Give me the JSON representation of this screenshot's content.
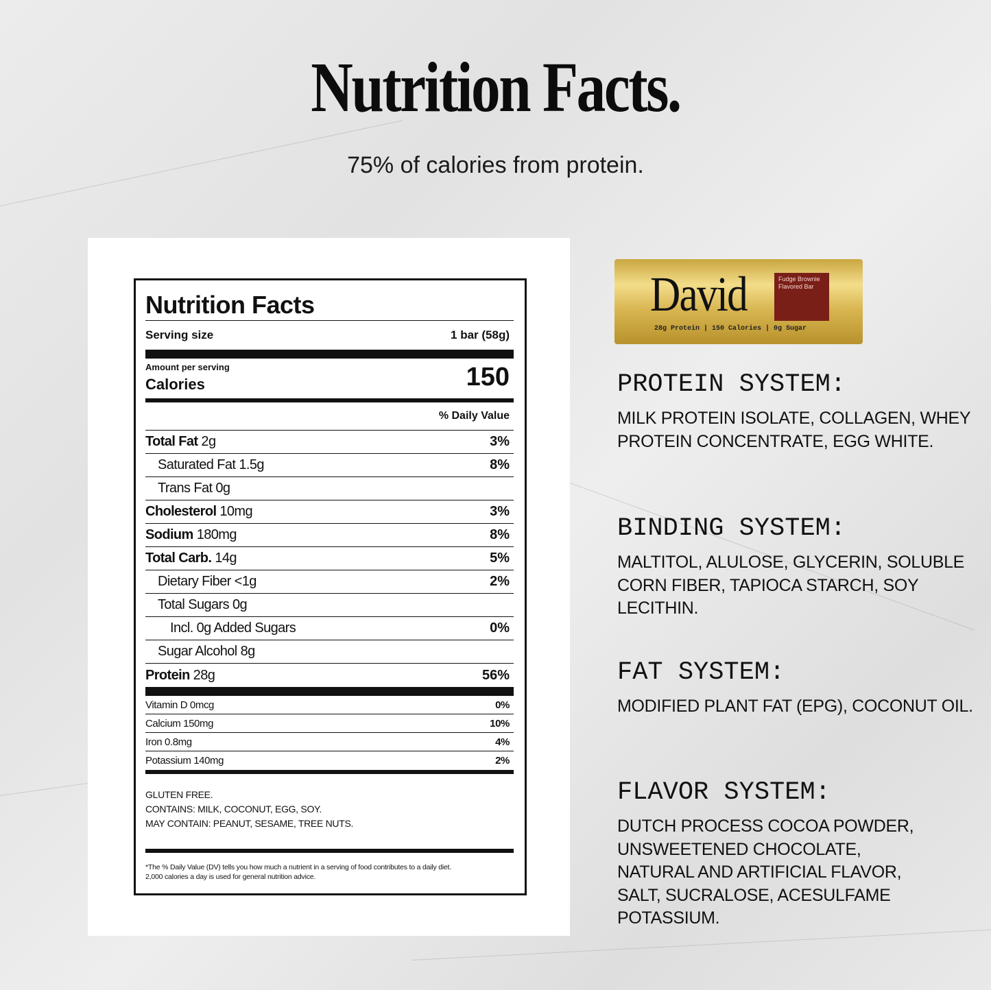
{
  "header": {
    "title": "Nutrition Facts.",
    "subtitle": "75% of calories from protein."
  },
  "label": {
    "title": "Nutrition Facts",
    "serving_label": "Serving size",
    "serving_value": "1 bar (58g)",
    "amount_per_serving": "Amount per serving",
    "calories_label": "Calories",
    "calories_value": "150",
    "dv_header": "% Daily Value",
    "nutrients": [
      {
        "name": "Total Fat",
        "amount": "2g",
        "dv": "3%",
        "bold": true,
        "indent": 0
      },
      {
        "name": "Saturated Fat",
        "amount": "1.5g",
        "dv": "8%",
        "bold": false,
        "indent": 1
      },
      {
        "name": "Trans Fat",
        "amount": "0g",
        "dv": "",
        "bold": false,
        "indent": 1
      },
      {
        "name": "Cholesterol",
        "amount": "10mg",
        "dv": "3%",
        "bold": true,
        "indent": 0
      },
      {
        "name": "Sodium",
        "amount": "180mg",
        "dv": "8%",
        "bold": true,
        "indent": 0
      },
      {
        "name": "Total Carb.",
        "amount": "14g",
        "dv": "5%",
        "bold": true,
        "indent": 0
      },
      {
        "name": "Dietary Fiber",
        "amount": "<1g",
        "dv": "2%",
        "bold": false,
        "indent": 1
      },
      {
        "name": "Total Sugars",
        "amount": "0g",
        "dv": "",
        "bold": false,
        "indent": 1
      },
      {
        "name": "Incl. 0g Added Sugars",
        "amount": "",
        "dv": "0%",
        "bold": false,
        "indent": 2
      },
      {
        "name": "Sugar Alcohol",
        "amount": "8g",
        "dv": "",
        "bold": false,
        "indent": 1
      },
      {
        "name": "Protein",
        "amount": "28g",
        "dv": "56%",
        "bold": true,
        "indent": 0
      }
    ],
    "vitamins": [
      {
        "name": "Vitamin D 0mcg",
        "dv": "0%"
      },
      {
        "name": "Calcium 150mg",
        "dv": "10%"
      },
      {
        "name": "Iron 0.8mg",
        "dv": "4%"
      },
      {
        "name": "Potassium 140mg",
        "dv": "2%"
      }
    ],
    "allergens": [
      "GLUTEN FREE.",
      "CONTAINS: MILK, COCONUT, EGG, SOY.",
      "MAY CONTAIN: PEANUT, SESAME, TREE NUTS."
    ],
    "footnote": [
      "*The % Daily Value (DV) tells you how much a nutrient in a serving of food contributes to a daily diet.",
      "2,000 calories a day is used for general nutrition advice."
    ]
  },
  "product": {
    "brand": "David",
    "flavor_line1": "Fudge Brownie",
    "flavor_line2": "Flavored Bar",
    "claims": "28g Protein | 150 Calories | 0g Sugar",
    "wrapper_color": "#d8b550",
    "flavor_box_color": "#7a1f18"
  },
  "systems": [
    {
      "heading": "PROTEIN SYSTEM:",
      "text": "MILK PROTEIN ISOLATE, COLLAGEN, WHEY PROTEIN CONCENTRATE, EGG WHITE."
    },
    {
      "heading": "BINDING SYSTEM:",
      "text": "MALTITOL, ALULOSE, GLYCERIN, SOLUBLE CORN FIBER, TAPIOCA STARCH, SOY LECITHIN."
    },
    {
      "heading": "FAT SYSTEM:",
      "text": "MODIFIED PLANT FAT (EPG), COCONUT OIL."
    },
    {
      "heading": "FLAVOR SYSTEM:",
      "text": "DUTCH PROCESS COCOA POWDER, UNSWEETENED CHOCOLATE, NATURAL AND ARTIFICIAL FLAVOR, SALT, SUCRALOSE, ACESULFAME POTASSIUM."
    }
  ]
}
